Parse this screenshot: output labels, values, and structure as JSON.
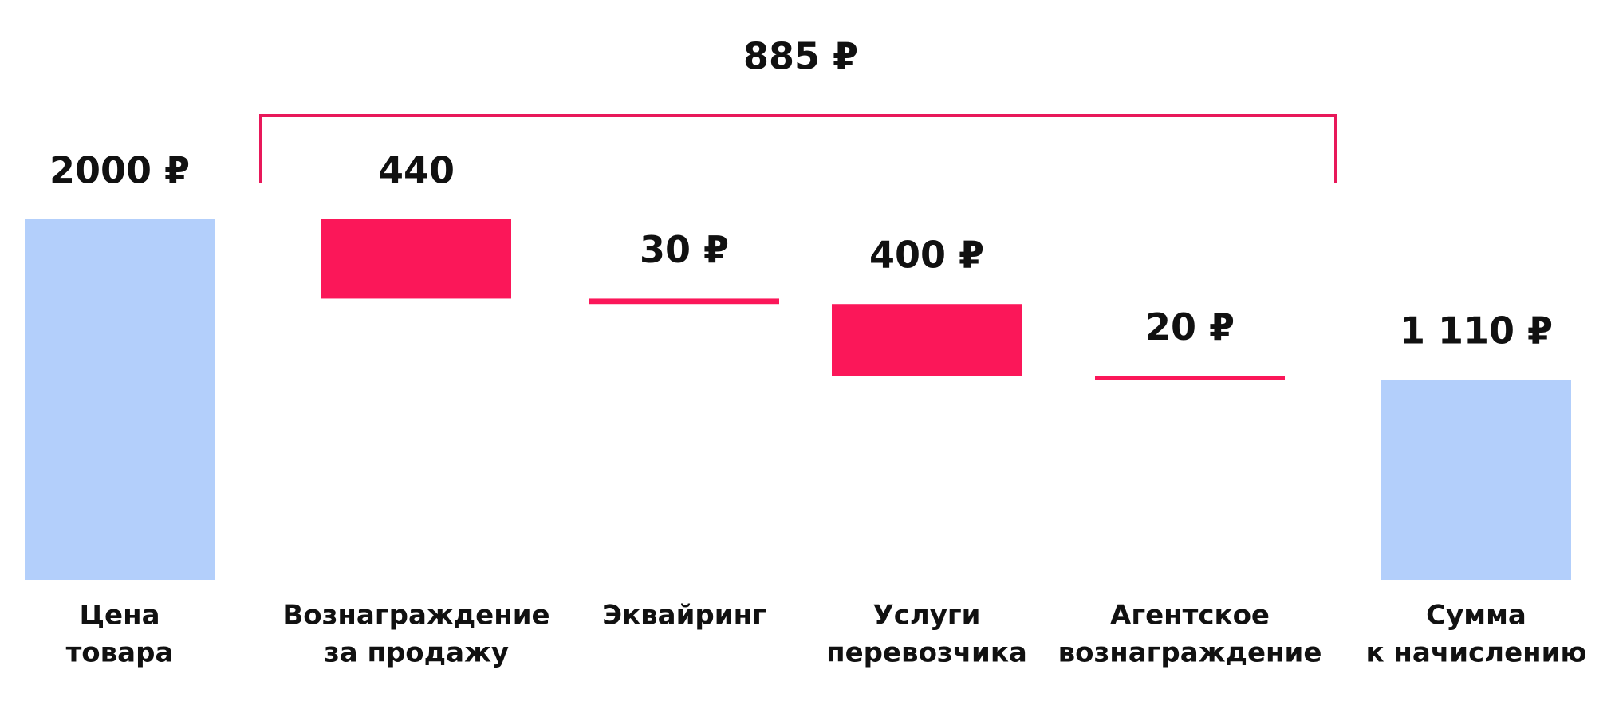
{
  "chart_data": {
    "type": "waterfall",
    "bracket_label": "885 ₽",
    "categories": [
      [
        "Цена",
        "товара"
      ],
      [
        "Вознаграждение",
        "за продажу"
      ],
      [
        "Эквайринг"
      ],
      [
        "Услуги",
        "перевозчика"
      ],
      [
        "Агентское",
        "вознаграждение"
      ],
      [
        "Сумма",
        "к начислению"
      ]
    ],
    "measure": [
      "absolute",
      "decrease",
      "decrease",
      "decrease",
      "decrease",
      "total"
    ],
    "values": [
      2000,
      440,
      30,
      400,
      20,
      1110
    ],
    "value_labels": [
      "2000 ₽",
      "440",
      "30 ₽",
      "400 ₽",
      "20 ₽",
      "1 110 ₽"
    ],
    "total_color": "#b3cffb",
    "decrease_color": "#fb1759",
    "bracket_color": "#e8185a"
  }
}
